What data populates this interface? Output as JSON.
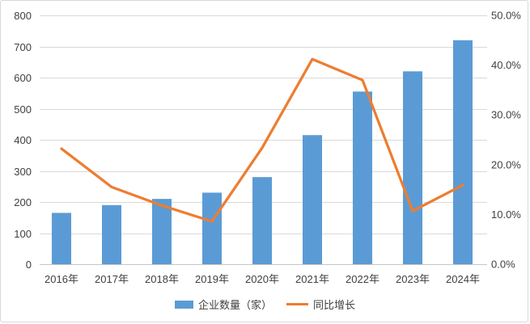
{
  "chart_data": {
    "type": "bar",
    "subtype": "combo-bar-line",
    "title": "",
    "categories": [
      "2016年",
      "2017年",
      "2018年",
      "2019年",
      "2020年",
      "2021年",
      "2022年",
      "2023年",
      "2024年"
    ],
    "series": [
      {
        "name": "企业数量（家）",
        "type": "bar",
        "axis": "left",
        "color": "#5B9BD5",
        "values": [
          165,
          190,
          210,
          230,
          280,
          415,
          555,
          620,
          720
        ]
      },
      {
        "name": "同比增长",
        "type": "line",
        "axis": "right",
        "color": "#ED7D31",
        "values": [
          23.2,
          15.5,
          11.8,
          8.6,
          23.4,
          41.2,
          37.0,
          10.7,
          15.9
        ]
      }
    ],
    "left_axis": {
      "min": 0,
      "max": 800,
      "step": 100,
      "tick_labels": [
        "0",
        "100",
        "200",
        "300",
        "400",
        "500",
        "600",
        "700",
        "800"
      ]
    },
    "right_axis": {
      "min": 0,
      "max": 50,
      "step": 10,
      "tick_labels": [
        "0.0%",
        "10.0%",
        "20.0%",
        "30.0%",
        "40.0%",
        "50.0%"
      ],
      "tick_values": [
        0,
        10,
        20,
        30,
        40,
        50
      ]
    },
    "grid": true,
    "legend_position": "bottom",
    "colors": {
      "gridline": "#d9d9d9",
      "axis_line": "#c6c6c6",
      "tick_text": "#404040"
    }
  }
}
